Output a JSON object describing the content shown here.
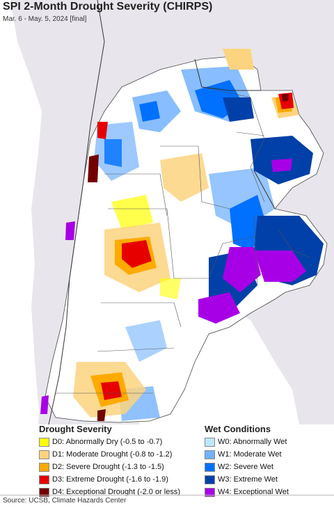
{
  "title": "SPI 2-Month Drought Severity (CHIRPS)",
  "subtitle": "Mar. 6 - May. 5, 2024 [final]",
  "drought_legend": {
    "heading": "Drought Severity",
    "items": [
      {
        "label": "D0: Abnormally Dry (-0.5 to -0.7)",
        "color": "#ffff00"
      },
      {
        "label": "D1: Moderate Drought (-0.8 to -1.2)",
        "color": "#fcd37f"
      },
      {
        "label": "D2: Severe Drought (-1.3 to -1.5)",
        "color": "#ffaa00"
      },
      {
        "label": "D3: Extreme Drought (-1.6 to -1.9)",
        "color": "#e60000"
      },
      {
        "label": "D4: Exceptional Drought (-2.0 or less)",
        "color": "#730000"
      }
    ]
  },
  "wet_legend": {
    "heading": "Wet Conditions",
    "items": [
      {
        "label": "W0: Abnormally Wet",
        "color": "#bee8ff"
      },
      {
        "label": "W1: Moderate Wet",
        "color": "#73b2ff"
      },
      {
        "label": "W2: Severe Wet",
        "color": "#0070ff"
      },
      {
        "label": "W3: Extreme Wet",
        "color": "#0040a8"
      },
      {
        "label": "W4: Exceptional Wet",
        "color": "#a800e6"
      }
    ]
  },
  "source": "Source: UCSB, Climate Hazards Center",
  "colors": {
    "ocean": "#ffffff",
    "outside_land": "#e8e6ec",
    "normal": "#ffffff",
    "border": "#444444"
  }
}
